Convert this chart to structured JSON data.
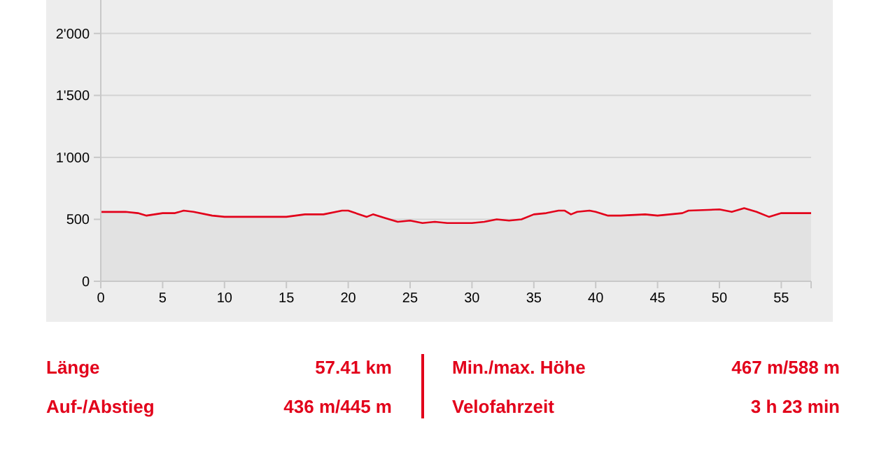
{
  "chart_data": {
    "type": "area",
    "xlim": [
      0,
      57.41
    ],
    "xticks": [
      0,
      5,
      10,
      15,
      20,
      25,
      30,
      35,
      40,
      45,
      50,
      55
    ],
    "ylim": [
      0,
      2270
    ],
    "yticks": [
      0,
      500,
      {
        "value": 1000,
        "label": "1'000"
      },
      {
        "value": 1500,
        "label": "1'500"
      },
      {
        "value": 2000,
        "label": "2'000"
      }
    ],
    "grid": "y",
    "x": [
      0,
      2,
      3,
      3.7,
      5,
      6,
      6.7,
      7.5,
      9,
      10,
      12,
      13,
      15,
      16.5,
      17,
      18,
      19.5,
      20,
      21.5,
      22,
      23,
      24,
      25,
      26,
      27,
      28,
      30,
      31,
      32,
      33,
      34,
      35,
      36,
      37,
      37.5,
      38,
      38.5,
      39.5,
      40,
      41,
      42,
      44,
      45,
      47,
      47.5,
      50,
      51,
      52,
      53,
      54,
      55,
      57.41
    ],
    "series": [
      {
        "color": "#e2001a",
        "values": [
          560,
          560,
          550,
          530,
          550,
          550,
          570,
          560,
          530,
          520,
          520,
          520,
          520,
          540,
          540,
          540,
          570,
          570,
          520,
          540,
          510,
          480,
          490,
          470,
          480,
          470,
          470,
          480,
          500,
          490,
          500,
          540,
          550,
          570,
          570,
          540,
          560,
          570,
          560,
          530,
          530,
          540,
          530,
          550,
          570,
          580,
          560,
          590,
          560,
          520,
          550,
          550
        ]
      }
    ],
    "annotations": [
      "Länge",
      "57.41 km",
      "Min./max. Höhe",
      "467 m/588 m",
      "Auf-/Abstieg",
      "436 m/445 m",
      "Velofahrzeit",
      "3 h 23 min"
    ]
  }
}
